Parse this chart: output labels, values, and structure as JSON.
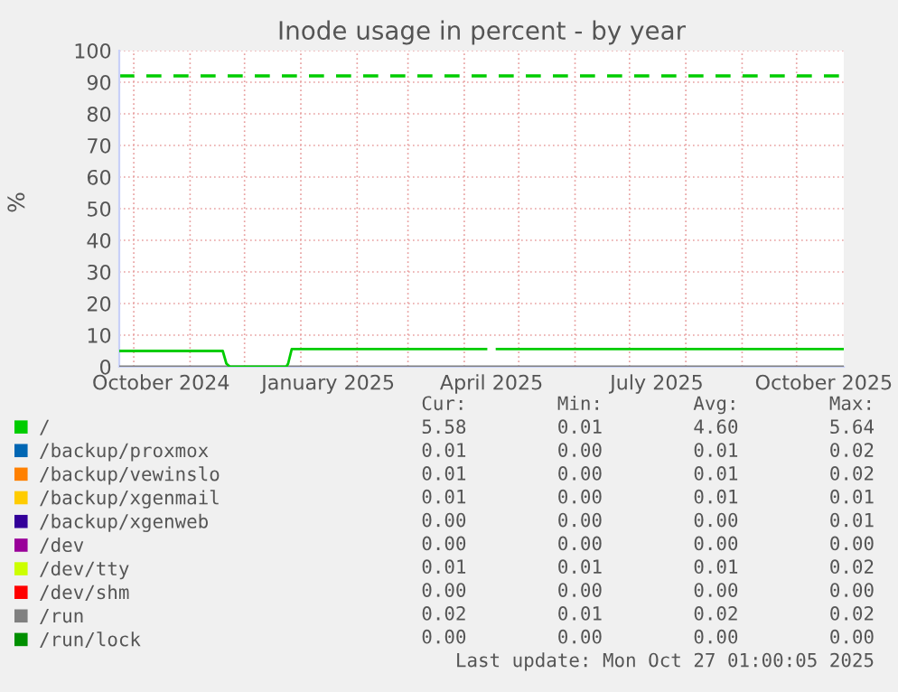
{
  "chart_data": {
    "type": "line",
    "title": "Inode usage in percent - by year",
    "ylabel": "%",
    "xlim": [
      "2024-09-23",
      "2025-10-27"
    ],
    "xticks": [
      {
        "value": "2024-10-01",
        "label": null
      },
      {
        "value": "2024-10-16",
        "label": "October 2024"
      },
      {
        "value": "2024-11-01",
        "label": null
      },
      {
        "value": "2024-12-01",
        "label": null
      },
      {
        "value": "2025-01-01",
        "label": null
      },
      {
        "value": "2025-01-16",
        "label": "January 2025"
      },
      {
        "value": "2025-02-01",
        "label": null
      },
      {
        "value": "2025-03-01",
        "label": null
      },
      {
        "value": "2025-04-01",
        "label": null
      },
      {
        "value": "2025-04-16",
        "label": "April 2025"
      },
      {
        "value": "2025-05-01",
        "label": null
      },
      {
        "value": "2025-06-01",
        "label": null
      },
      {
        "value": "2025-07-01",
        "label": null
      },
      {
        "value": "2025-07-16",
        "label": "July 2025"
      },
      {
        "value": "2025-08-01",
        "label": null
      },
      {
        "value": "2025-09-01",
        "label": null
      },
      {
        "value": "2025-10-01",
        "label": null
      },
      {
        "value": "2025-10-16",
        "label": "October 2025"
      }
    ],
    "ylim": [
      0,
      100
    ],
    "yticks": [
      0,
      10,
      20,
      30,
      40,
      50,
      60,
      70,
      80,
      90,
      100
    ],
    "grid": true,
    "legend": "bottom",
    "marker": "none",
    "line_style": "solid",
    "ref_lines": [
      {
        "axis": "y",
        "value": 92,
        "color": "#00cc00",
        "line_style": "dashed"
      }
    ],
    "series": [
      {
        "name": "/",
        "color": "#00cc00",
        "x": [
          "2024-09-23",
          "2024-11-19",
          "2024-11-21",
          "2024-11-23",
          "2024-12-24",
          "2024-12-25",
          "2024-12-27",
          "2025-04-13",
          "2025-04-16",
          "2025-04-19",
          "2025-10-27"
        ],
        "values": [
          5.0,
          5.0,
          1.0,
          0,
          0,
          1.0,
          5.6,
          5.6,
          null,
          5.6,
          5.6
        ]
      },
      {
        "name": "/backup/proxmox",
        "color": "#0066b3"
      },
      {
        "name": "/backup/vewinslo",
        "color": "#ff8000"
      },
      {
        "name": "/backup/xgenmail",
        "color": "#ffcc00"
      },
      {
        "name": "/backup/xgenweb",
        "color": "#330099"
      },
      {
        "name": "/dev",
        "color": "#990099"
      },
      {
        "name": "/dev/tty",
        "color": "#ccff00"
      },
      {
        "name": "/dev/shm",
        "color": "#ff0000"
      },
      {
        "name": "/run",
        "color": "#808080",
        "x": [
          "2024-09-23",
          "2025-10-27"
        ],
        "values": [
          0,
          0
        ]
      },
      {
        "name": "/run/lock",
        "color": "#008f00"
      }
    ],
    "annotations": [
      "Cur:        Min:        Avg:        Max:",
      "5.58        0.01        4.60        5.64",
      "0.01        0.00        0.01        0.02",
      "0.01        0.00        0.01        0.02",
      "0.01        0.00        0.01        0.01",
      "0.00        0.00        0.00        0.01",
      "0.00        0.00        0.00        0.00",
      "0.01        0.01        0.01        0.02",
      "0.00        0.00        0.00        0.00",
      "0.02        0.01        0.02        0.02",
      "0.00        0.00        0.00        0.00",
      "Last update: Mon Oct 27 01:00:05 2025"
    ]
  }
}
